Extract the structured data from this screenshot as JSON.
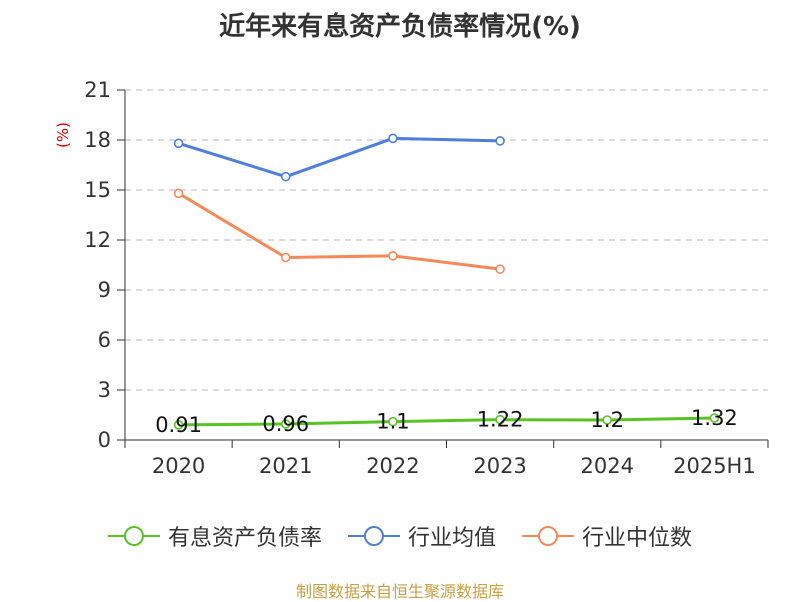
{
  "title": "近年来有息资产负债率情况(%)",
  "unit_label": "(%)",
  "source": "制图数据来自恒生聚源数据库",
  "colors": {
    "series1": "#58c322",
    "series2": "#4f7fdc",
    "series3": "#f5895a",
    "grid": "#c8c8c8",
    "axis": "#333333",
    "unit": "#cc0000",
    "source": "#c8a046"
  },
  "chart_data": {
    "type": "line",
    "categories": [
      "2020",
      "2021",
      "2022",
      "2023",
      "2024",
      "2025H1"
    ],
    "ylim": [
      0,
      21
    ],
    "yticks": [
      0,
      3,
      6,
      9,
      12,
      15,
      18,
      21
    ],
    "grid": true,
    "legend_position": "bottom",
    "series": [
      {
        "name": "有息资产负债率",
        "values": [
          0.91,
          0.96,
          1.1,
          1.22,
          1.2,
          1.32
        ],
        "labels": [
          "0.91",
          "0.96",
          "1.1",
          "1.22",
          "1.2",
          "1.32"
        ]
      },
      {
        "name": "行业均值",
        "values": [
          17.8,
          15.8,
          18.1,
          17.95,
          null,
          null
        ]
      },
      {
        "name": "行业中位数",
        "values": [
          14.8,
          10.95,
          11.05,
          10.25,
          null,
          null
        ]
      }
    ]
  }
}
